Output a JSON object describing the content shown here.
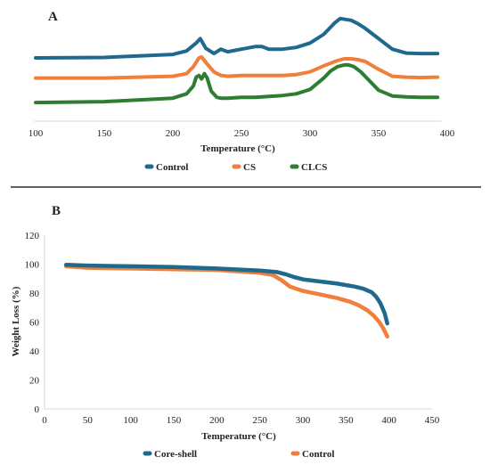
{
  "panels": [
    {
      "label": "A"
    },
    {
      "label": "B"
    }
  ],
  "chart_data": [
    {
      "type": "line",
      "panel": "A",
      "title": "",
      "xlabel": "Temperature (°C)",
      "ylabel": "",
      "xlim": [
        100,
        400
      ],
      "xticks": [
        100,
        150,
        200,
        250,
        300,
        350,
        400
      ],
      "yticks_shown": false,
      "grid": false,
      "legend_position": "bottom",
      "series": [
        {
          "name": "Control",
          "color": "#1f6a8c",
          "x": [
            100,
            150,
            200,
            210,
            217,
            220,
            224,
            230,
            235,
            240,
            250,
            260,
            265,
            270,
            280,
            290,
            300,
            310,
            318,
            322,
            326,
            330,
            335,
            340,
            350,
            360,
            370,
            380,
            393
          ],
          "y": [
            5.6,
            5.65,
            6.0,
            6.4,
            7.3,
            7.8,
            6.7,
            6.1,
            6.6,
            6.3,
            6.6,
            6.9,
            6.9,
            6.6,
            6.6,
            6.8,
            7.3,
            8.3,
            9.6,
            10.1,
            10.0,
            9.9,
            9.5,
            9.0,
            7.8,
            6.6,
            6.15,
            6.1,
            6.1
          ]
        },
        {
          "name": "CS",
          "color": "#f07f3c",
          "x": [
            100,
            150,
            200,
            210,
            215,
            219,
            221,
            225,
            230,
            235,
            240,
            250,
            260,
            270,
            280,
            290,
            300,
            310,
            320,
            325,
            330,
            335,
            340,
            350,
            360,
            370,
            380,
            393
          ],
          "y": [
            3.3,
            3.3,
            3.5,
            3.8,
            4.6,
            5.6,
            5.7,
            4.9,
            4.0,
            3.6,
            3.5,
            3.6,
            3.6,
            3.6,
            3.6,
            3.7,
            4.0,
            4.7,
            5.3,
            5.5,
            5.5,
            5.4,
            5.2,
            4.3,
            3.5,
            3.4,
            3.35,
            3.4
          ]
        },
        {
          "name": "CLCS",
          "color": "#2e7d32",
          "x": [
            100,
            150,
            200,
            210,
            215,
            217,
            219,
            221,
            223,
            225,
            228,
            232,
            235,
            240,
            250,
            260,
            270,
            280,
            290,
            300,
            310,
            315,
            320,
            325,
            328,
            332,
            337,
            342,
            350,
            360,
            370,
            380,
            393
          ],
          "y": [
            0.5,
            0.6,
            1.0,
            1.5,
            2.4,
            3.4,
            3.6,
            3.2,
            3.8,
            3.3,
            1.8,
            1.1,
            1.0,
            1.0,
            1.1,
            1.1,
            1.2,
            1.3,
            1.5,
            2.0,
            3.3,
            4.1,
            4.6,
            4.8,
            4.8,
            4.6,
            4.0,
            3.2,
            1.9,
            1.25,
            1.15,
            1.1,
            1.1
          ]
        }
      ]
    },
    {
      "type": "line",
      "panel": "B",
      "title": "",
      "xlabel": "Temperature (°C)",
      "ylabel": "Weight Loss (%)",
      "xlim": [
        0,
        450
      ],
      "ylim": [
        0,
        120
      ],
      "xticks": [
        0,
        50,
        100,
        150,
        200,
        250,
        300,
        350,
        400,
        450
      ],
      "yticks": [
        0,
        20,
        40,
        60,
        80,
        100,
        120
      ],
      "grid": false,
      "legend_position": "bottom",
      "series": [
        {
          "name": "Core-shell",
          "color": "#1f6a8c",
          "x": [
            25,
            50,
            100,
            150,
            200,
            250,
            270,
            280,
            290,
            300,
            320,
            340,
            360,
            370,
            380,
            385,
            390,
            395,
            398
          ],
          "y": [
            99.5,
            99,
            98.5,
            98,
            97,
            95.5,
            94.5,
            93,
            91,
            89.5,
            88,
            86.5,
            84.5,
            83,
            80.5,
            77.5,
            73,
            66,
            59
          ]
        },
        {
          "name": "Control",
          "color": "#f07f3c",
          "x": [
            25,
            50,
            100,
            150,
            200,
            250,
            265,
            275,
            285,
            300,
            320,
            340,
            355,
            365,
            375,
            382,
            388,
            393,
            398
          ],
          "y": [
            98.5,
            97.5,
            97,
            96.5,
            96,
            94,
            92.5,
            89,
            84.5,
            81.5,
            79,
            76.5,
            74,
            71.5,
            68,
            64.5,
            60.5,
            56,
            50
          ]
        }
      ]
    }
  ]
}
